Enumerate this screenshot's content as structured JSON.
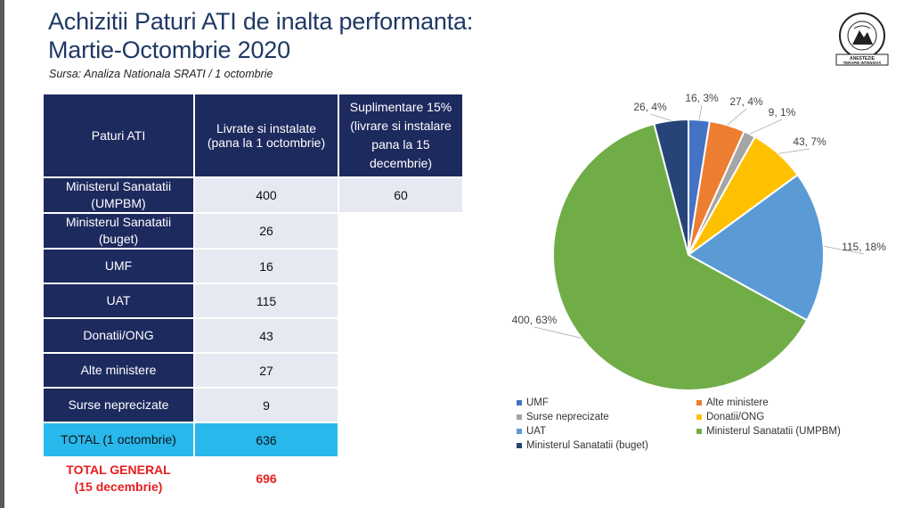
{
  "title_line1": "Achizitii Paturi ATI de inalta performanta:",
  "title_line2": "Martie-Octombrie 2020",
  "source": "Sursa: Analiza Nationala SRATI / 1 octombrie",
  "logo": {
    "top": "SOCIETATEA ROMÂNĂ",
    "line1": "ANESTEZIE",
    "line2": "TERAPIE INTENSIVĂ"
  },
  "table": {
    "headers": {
      "col1": "Paturi ATI",
      "col2_a": "Livrate si instalate",
      "col2_b": "(pana la 1 octombrie)",
      "col3_a": "Suplimentare 15%",
      "col3_b": "(livrare si instalare",
      "col3_c": "pana la 15",
      "col3_d": "decembrie)"
    },
    "rows": [
      {
        "label_a": "Ministerul Sanatatii",
        "label_b": "(UMPBM)",
        "value": "400",
        "extra": "60"
      },
      {
        "label_a": "Ministerul Sanatatii",
        "label_b": "(buget)",
        "value": "26"
      },
      {
        "label_a": "UMF",
        "value": "16"
      },
      {
        "label_a": "UAT",
        "value": "115"
      },
      {
        "label_a": "Donatii/ONG",
        "value": "43"
      },
      {
        "label_a": "Alte ministere",
        "value": "27"
      },
      {
        "label_a": "Surse neprecizate",
        "value": "9"
      }
    ],
    "total": {
      "label": "TOTAL (1 octombrie)",
      "value": "636"
    },
    "general": {
      "label_a": "TOTAL GENERAL",
      "label_b": "(15 decembrie)",
      "value": "696"
    }
  },
  "chart_data": {
    "type": "pie",
    "slices": [
      {
        "name": "UMF",
        "value": 16,
        "label": "16, 3%",
        "color": "#4472c4"
      },
      {
        "name": "Alte ministere",
        "value": 27,
        "label": "27, 4%",
        "color": "#ed7d31"
      },
      {
        "name": "Surse neprecizate",
        "value": 9,
        "label": "9, 1%",
        "color": "#a5a5a5"
      },
      {
        "name": "Donatii/ONG",
        "value": 43,
        "label": "43, 7%",
        "color": "#ffc000"
      },
      {
        "name": "UAT",
        "value": 115,
        "label": "115, 18%",
        "color": "#5b9bd5"
      },
      {
        "name": "Ministerul Sanatatii (UMPBM)",
        "value": 400,
        "label": "400, 63%",
        "color": "#70ad47"
      },
      {
        "name": "Ministerul Sanatatii (buget)",
        "value": 26,
        "label": "26, 4%",
        "color": "#264478"
      }
    ],
    "legend": [
      "UMF",
      "Alte ministere",
      "Surse neprecizate",
      "Donatii/ONG",
      "UAT",
      "Ministerul Sanatatii (UMPBM)",
      "Ministerul Sanatatii (buget)"
    ],
    "legend_position": "bottom"
  }
}
